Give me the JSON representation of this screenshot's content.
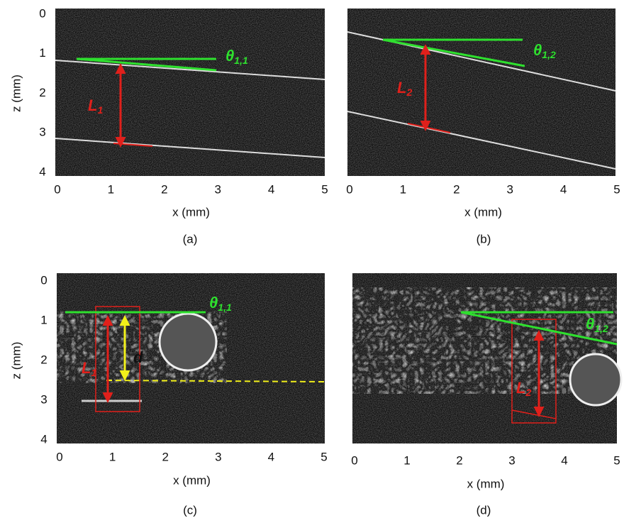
{
  "panels": [
    {
      "caption": "(a)",
      "xlabel": "x (mm)",
      "ylabel": "z (mm)",
      "xticks": [
        0,
        1,
        2,
        3,
        4,
        5
      ],
      "yticks": [
        0,
        1,
        2,
        3,
        4
      ],
      "angle": {
        "symbol": "θ",
        "sub": "1,1"
      },
      "length": {
        "symbol": "L",
        "sub": "1"
      }
    },
    {
      "caption": "(b)",
      "xlabel": "x (mm)",
      "xticks": [
        0,
        1,
        2,
        3,
        4,
        5
      ],
      "angle": {
        "symbol": "θ",
        "sub": "1,2"
      },
      "length": {
        "symbol": "L",
        "sub": "2"
      }
    },
    {
      "caption": "(c)",
      "xlabel": "x (mm)",
      "ylabel": "z (mm)",
      "xticks": [
        0,
        1,
        2,
        3,
        4,
        5
      ],
      "yticks": [
        0,
        1,
        2,
        3,
        4
      ],
      "angle": {
        "symbol": "θ",
        "sub": "1,1"
      },
      "length": {
        "symbol": "L",
        "sub": "1"
      },
      "thickness": "d"
    },
    {
      "caption": "(d)",
      "xlabel": "x (mm)",
      "xticks": [
        0,
        1,
        2,
        3,
        4,
        5
      ],
      "angle": {
        "symbol": "θ",
        "sub": "1,2"
      },
      "length": {
        "symbol": "L",
        "sub": "2"
      }
    }
  ]
}
